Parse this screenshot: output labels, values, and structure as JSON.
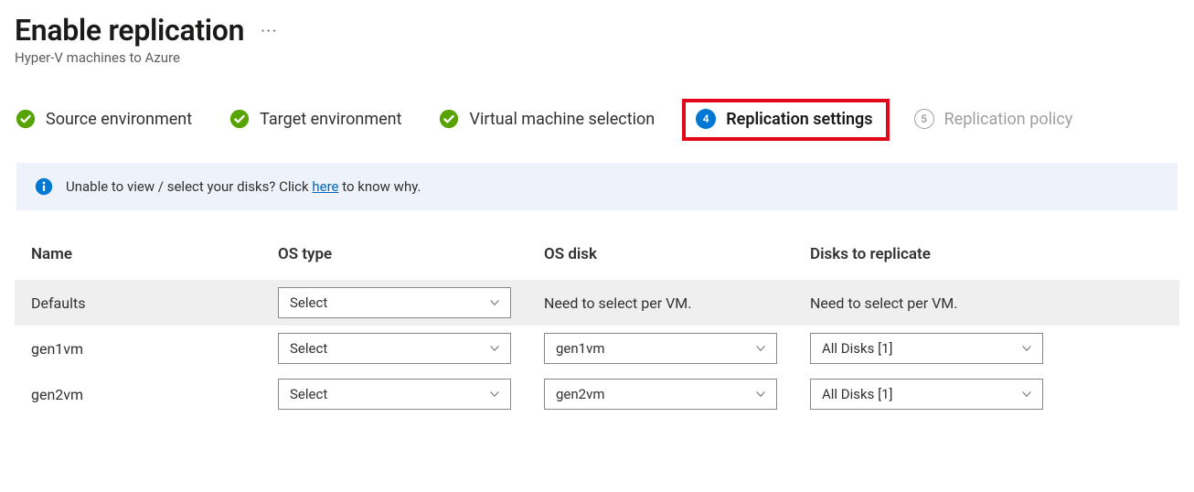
{
  "header": {
    "title": "Enable replication",
    "subtitle": "Hyper-V machines to Azure"
  },
  "steps": [
    {
      "label": "Source environment",
      "state": "done"
    },
    {
      "label": "Target environment",
      "state": "done"
    },
    {
      "label": "Virtual machine selection",
      "state": "done"
    },
    {
      "label": "Replication settings",
      "state": "active",
      "number": "4"
    },
    {
      "label": "Replication policy",
      "state": "upcoming",
      "number": "5"
    }
  ],
  "banner": {
    "text_before": "Unable to view / select your disks? Click ",
    "link": "here",
    "text_after": " to know why."
  },
  "table": {
    "columns": [
      "Name",
      "OS type",
      "OS disk",
      "Disks to replicate"
    ],
    "rows": [
      {
        "name": "Defaults",
        "os_type": {
          "kind": "select",
          "value": "Select"
        },
        "os_disk": {
          "kind": "text",
          "value": "Need to select per VM."
        },
        "disks": {
          "kind": "text",
          "value": "Need to select per VM."
        },
        "defaults": true
      },
      {
        "name": "gen1vm",
        "os_type": {
          "kind": "select",
          "value": "Select"
        },
        "os_disk": {
          "kind": "select",
          "value": "gen1vm"
        },
        "disks": {
          "kind": "select",
          "value": "All Disks [1]"
        }
      },
      {
        "name": "gen2vm",
        "os_type": {
          "kind": "select",
          "value": "Select"
        },
        "os_disk": {
          "kind": "select",
          "value": "gen2vm"
        },
        "disks": {
          "kind": "select",
          "value": "All Disks [1]"
        }
      }
    ]
  },
  "colors": {
    "accent": "#0078d4",
    "success": "#57a300",
    "highlight_border": "#e3061b",
    "banner_bg": "#eef3fb",
    "defaults_row_bg": "#efefef",
    "border": "#8a8886",
    "disabled": "#a19f9d"
  }
}
